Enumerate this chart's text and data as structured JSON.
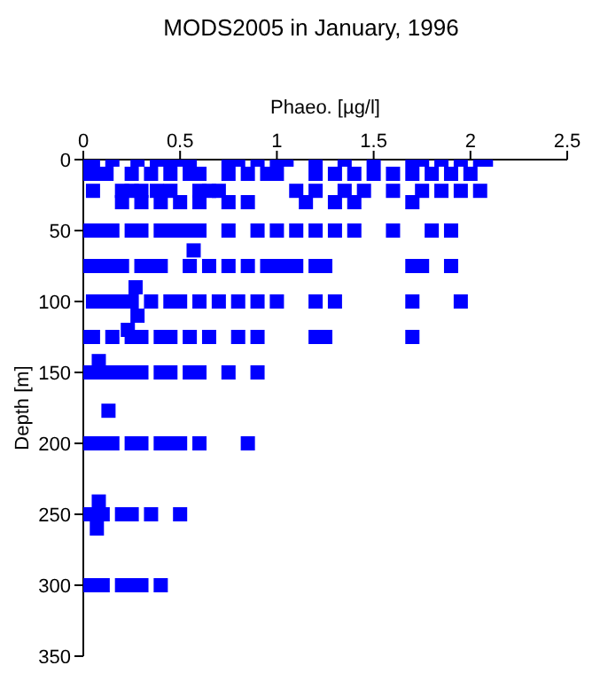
{
  "chart_data": {
    "type": "scatter",
    "title": "MODS2005 in January, 1996",
    "xlabel": "Phaeo. [µg/l]",
    "ylabel": "Depth [m]",
    "x": [
      0.02,
      0.05,
      0.15,
      0.28,
      0.38,
      0.45,
      0.5,
      0.55,
      0.75,
      0.8,
      0.9,
      1.0,
      1.05,
      1.2,
      1.35,
      1.5,
      1.7,
      1.75,
      1.85,
      1.95,
      2.05,
      2.08,
      0.03,
      0.08,
      0.12,
      0.25,
      0.35,
      0.45,
      0.55,
      0.6,
      0.75,
      0.85,
      0.95,
      1.0,
      1.2,
      1.3,
      1.4,
      1.5,
      1.6,
      1.7,
      1.8,
      1.9,
      2.0,
      0.05,
      0.2,
      0.25,
      0.3,
      0.38,
      0.45,
      0.6,
      0.65,
      0.7,
      1.1,
      1.2,
      1.35,
      1.45,
      1.6,
      1.75,
      1.85,
      1.95,
      2.05,
      0.2,
      0.3,
      0.4,
      0.5,
      0.6,
      0.75,
      0.85,
      1.15,
      1.3,
      1.4,
      1.7,
      0.02,
      0.05,
      0.1,
      0.15,
      0.25,
      0.3,
      0.4,
      0.45,
      0.5,
      0.55,
      0.6,
      0.75,
      0.9,
      1.0,
      1.1,
      1.2,
      1.3,
      1.4,
      1.6,
      1.8,
      1.9,
      0.57,
      0.03,
      0.08,
      0.15,
      0.2,
      0.3,
      0.35,
      0.4,
      0.55,
      0.65,
      0.75,
      0.85,
      0.95,
      1.0,
      1.05,
      1.1,
      1.2,
      1.25,
      1.7,
      1.75,
      1.9,
      0.27,
      0.05,
      0.1,
      0.15,
      0.2,
      0.25,
      0.35,
      0.45,
      0.5,
      0.6,
      0.7,
      0.8,
      0.9,
      1.0,
      1.2,
      1.3,
      1.7,
      1.95,
      0.28,
      0.23,
      0.02,
      0.05,
      0.15,
      0.25,
      0.3,
      0.4,
      0.45,
      0.55,
      0.65,
      0.8,
      0.9,
      1.2,
      1.25,
      1.7,
      0.08,
      0.02,
      0.05,
      0.1,
      0.15,
      0.2,
      0.25,
      0.3,
      0.4,
      0.45,
      0.55,
      0.6,
      0.75,
      0.9,
      0.13,
      0.02,
      0.05,
      0.1,
      0.15,
      0.25,
      0.3,
      0.4,
      0.45,
      0.5,
      0.6,
      0.85,
      0.08,
      0.02,
      0.05,
      0.1,
      0.2,
      0.25,
      0.35,
      0.5,
      0.07,
      0.02,
      0.05,
      0.1,
      0.2,
      0.25,
      0.3,
      0.4
    ],
    "values": [
      0,
      0,
      0,
      0,
      0,
      0,
      0,
      0,
      0,
      0,
      0,
      0,
      0,
      0,
      0,
      0,
      0,
      0,
      0,
      0,
      0,
      0,
      10,
      10,
      10,
      10,
      10,
      10,
      10,
      10,
      10,
      10,
      10,
      10,
      10,
      10,
      10,
      10,
      10,
      10,
      10,
      10,
      10,
      22,
      22,
      22,
      22,
      22,
      22,
      22,
      22,
      22,
      22,
      22,
      22,
      22,
      22,
      22,
      22,
      22,
      22,
      30,
      30,
      30,
      30,
      30,
      30,
      30,
      30,
      30,
      30,
      30,
      50,
      50,
      50,
      50,
      50,
      50,
      50,
      50,
      50,
      50,
      50,
      50,
      50,
      50,
      50,
      50,
      50,
      50,
      50,
      50,
      50,
      64,
      75,
      75,
      75,
      75,
      75,
      75,
      75,
      75,
      75,
      75,
      75,
      75,
      75,
      75,
      75,
      75,
      75,
      75,
      75,
      75,
      90,
      100,
      100,
      100,
      100,
      100,
      100,
      100,
      100,
      100,
      100,
      100,
      100,
      100,
      100,
      100,
      100,
      100,
      110,
      120,
      125,
      125,
      125,
      125,
      125,
      125,
      125,
      125,
      125,
      125,
      125,
      125,
      125,
      125,
      142,
      150,
      150,
      150,
      150,
      150,
      150,
      150,
      150,
      150,
      150,
      150,
      150,
      150,
      177,
      200,
      200,
      200,
      200,
      200,
      200,
      200,
      200,
      200,
      200,
      200,
      241,
      250,
      250,
      250,
      250,
      250,
      250,
      250,
      260,
      300,
      300,
      300,
      300,
      300,
      300,
      300
    ],
    "color": "#0000ff",
    "marker": "square",
    "xlim": [
      0,
      2.5
    ],
    "xticks": [
      0,
      0.5,
      1,
      1.5,
      2,
      2.5
    ],
    "ylim": [
      350,
      0
    ],
    "yticks": [
      0,
      50,
      100,
      150,
      200,
      250,
      300,
      350
    ],
    "grid": false
  }
}
